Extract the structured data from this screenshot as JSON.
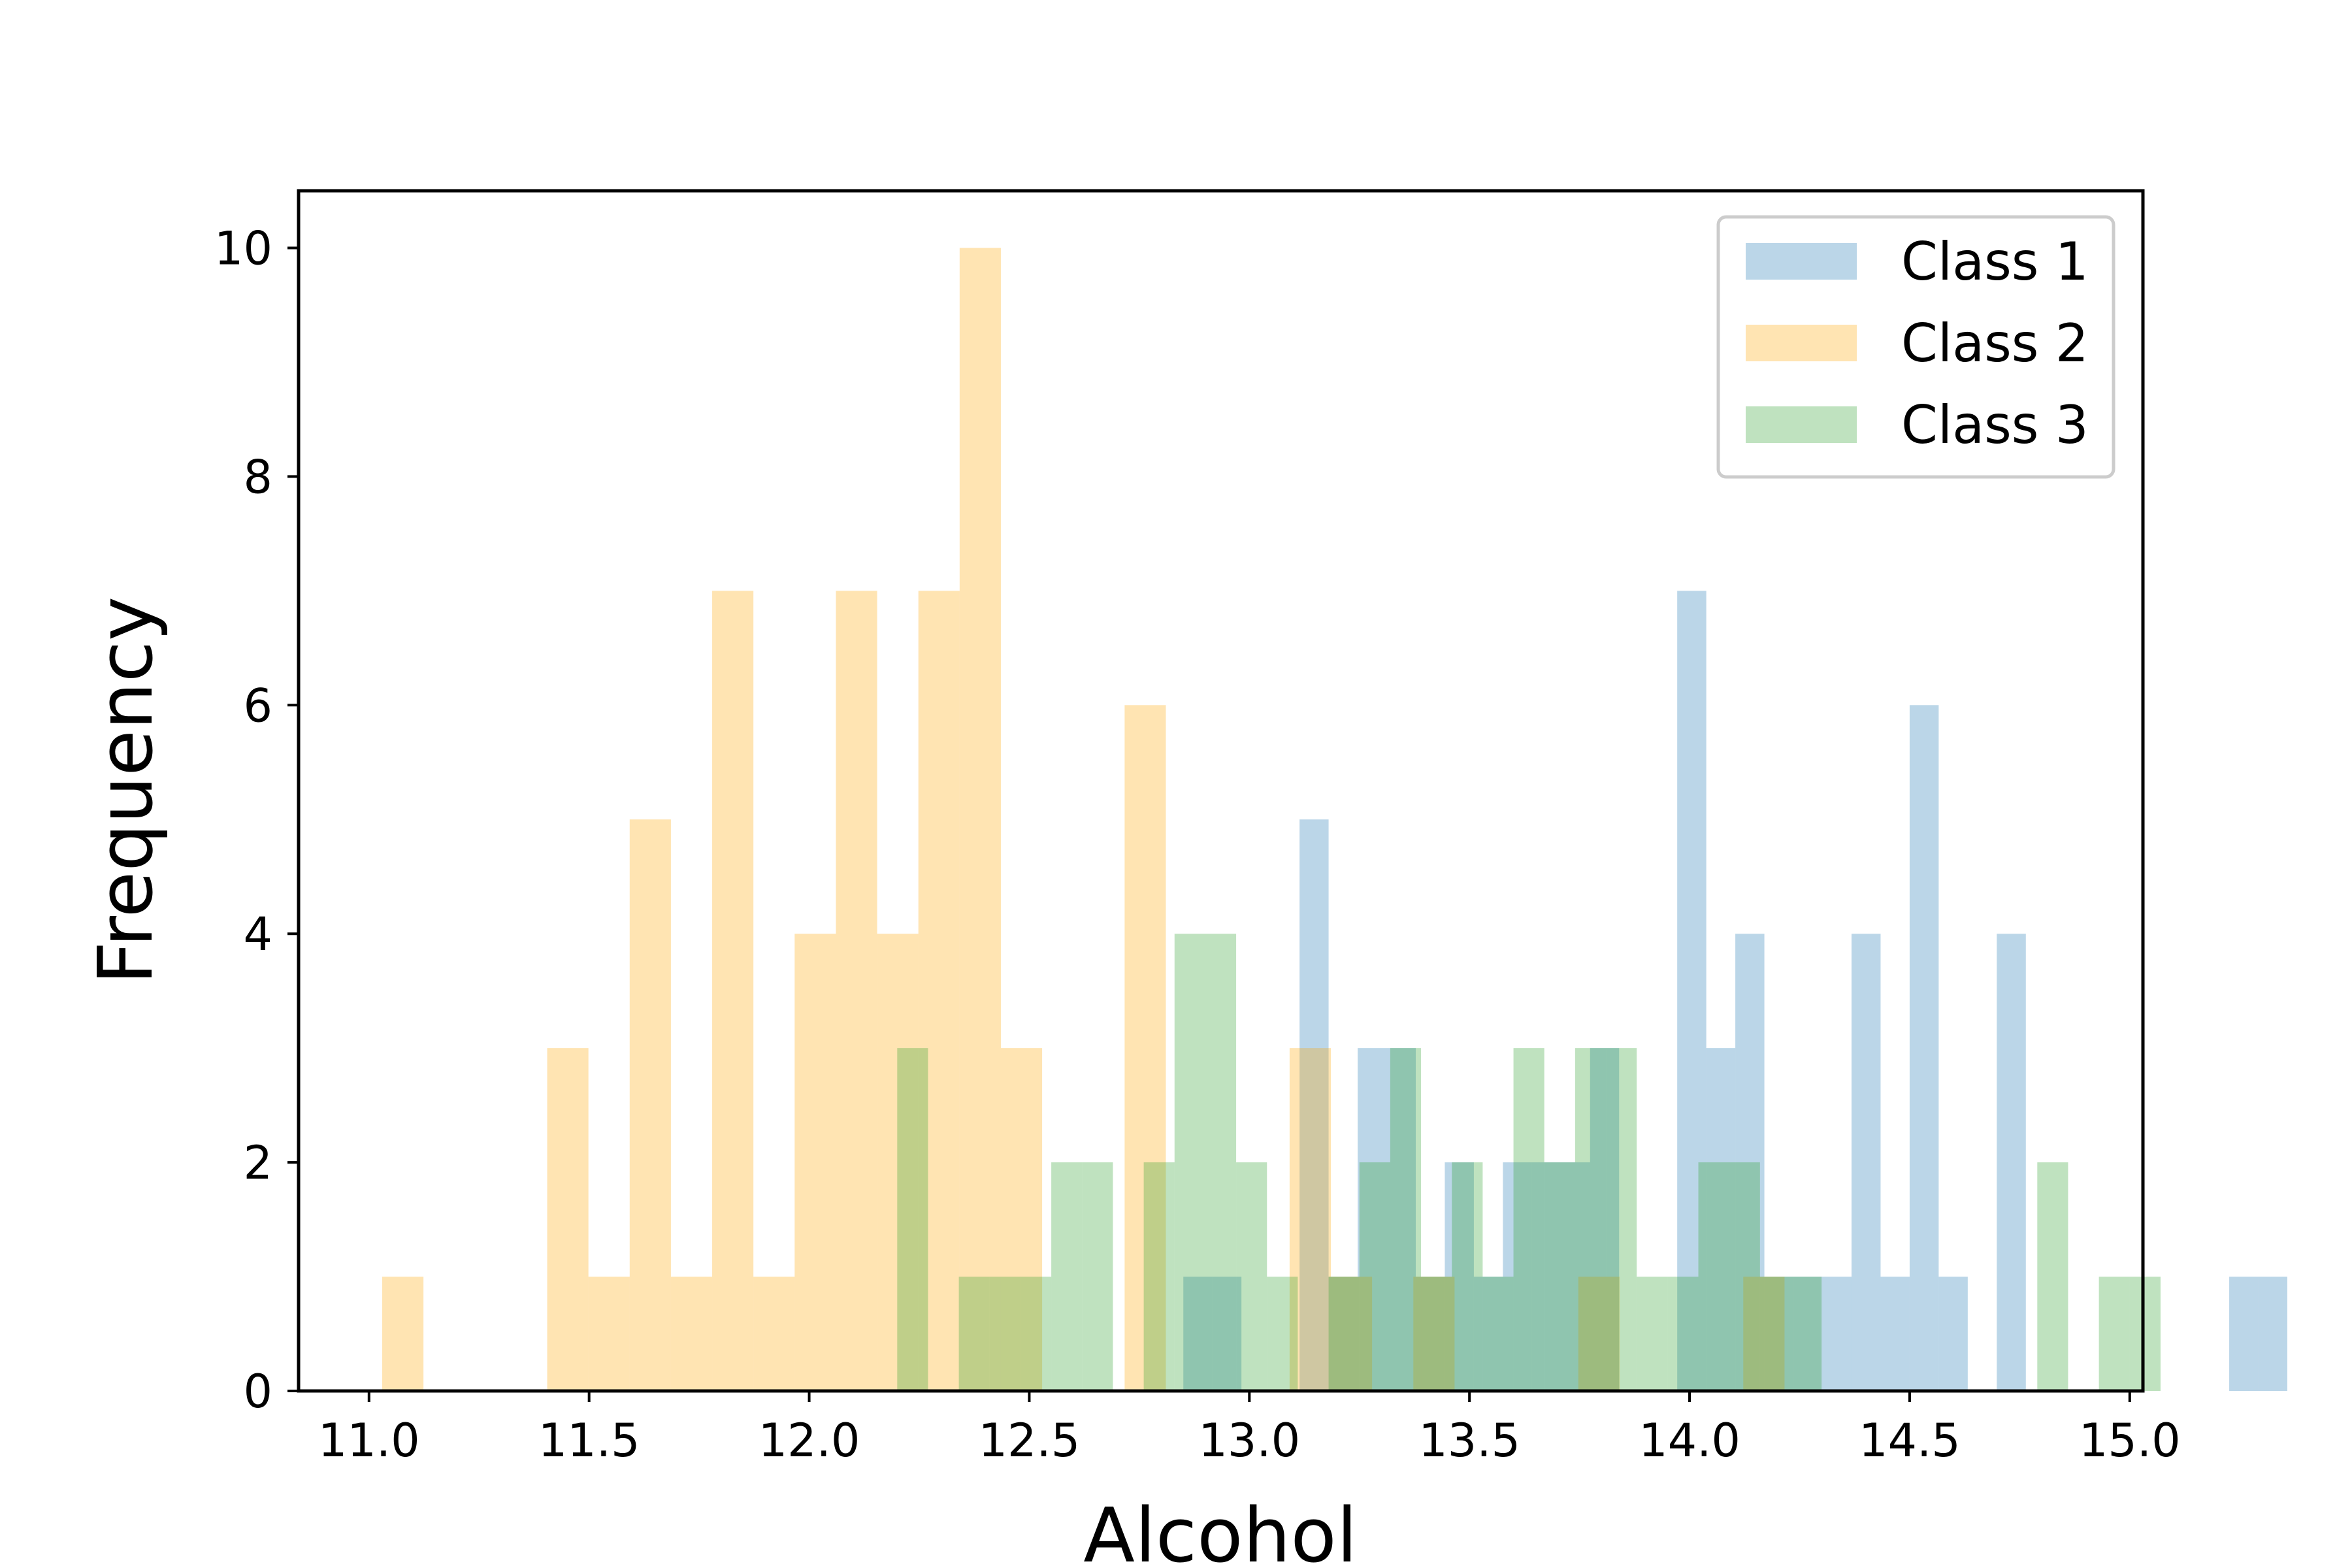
{
  "chart_data": {
    "type": "bar",
    "histogram": true,
    "xlabel": "Alcohol",
    "ylabel": "Frequency",
    "xlim": [
      10.84,
      15.03
    ],
    "ylim": [
      0,
      10.5
    ],
    "xticks": [
      11.0,
      11.5,
      12.0,
      12.5,
      13.0,
      13.5,
      14.0,
      14.5,
      15.0
    ],
    "xtick_labels": [
      "11.0",
      "11.5",
      "12.0",
      "12.5",
      "13.0",
      "13.5",
      "14.0",
      "14.5",
      "15.0"
    ],
    "yticks": [
      0,
      2,
      4,
      6,
      8,
      10
    ],
    "ytick_labels": [
      "0",
      "2",
      "4",
      "6",
      "8",
      "10"
    ],
    "legend_position": "top-right",
    "grid": false,
    "series": [
      {
        "name": "Class 1",
        "color": "#1f77b4",
        "alpha": 0.3,
        "bin_start": 12.85,
        "bin_width": 0.066,
        "counts": [
          1,
          1,
          0,
          0,
          5,
          1,
          3,
          3,
          1,
          2,
          1,
          2,
          2,
          2,
          3,
          0,
          0,
          7,
          3,
          4,
          1,
          1,
          1,
          4,
          1,
          6,
          1,
          0,
          4,
          0,
          0,
          0,
          0,
          0,
          0,
          0,
          1,
          1
        ]
      },
      {
        "name": "Class 2",
        "color": "#ffa500",
        "alpha": 0.3,
        "bin_start": 11.03,
        "bin_width": 0.0937,
        "counts": [
          1,
          0,
          0,
          0,
          3,
          1,
          5,
          1,
          7,
          1,
          4,
          7,
          4,
          7,
          10,
          3,
          0,
          0,
          6,
          0,
          0,
          0,
          3,
          1,
          0,
          1,
          0,
          0,
          0,
          1,
          0,
          0,
          0,
          1
        ]
      },
      {
        "name": "Class 3",
        "color": "#2ca02c",
        "alpha": 0.3,
        "bin_start": 12.2,
        "bin_width": 0.07,
        "counts": [
          3,
          0,
          1,
          1,
          1,
          2,
          2,
          0,
          2,
          4,
          4,
          2,
          1,
          0,
          1,
          2,
          3,
          1,
          2,
          1,
          3,
          2,
          3,
          3,
          1,
          1,
          2,
          2,
          1,
          1,
          0,
          0,
          0,
          0,
          0,
          0,
          0,
          2,
          0,
          1,
          1
        ]
      }
    ]
  }
}
